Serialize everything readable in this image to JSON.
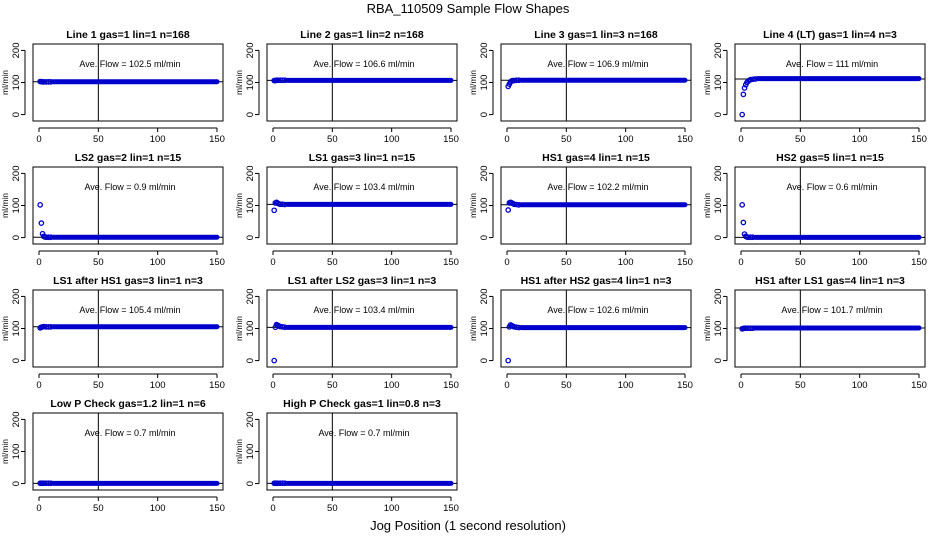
{
  "figure": {
    "title": "RBA_110509  Sample Flow Shapes",
    "xlabel": "Jog Position (1 second resolution)"
  },
  "chart_data": [
    {
      "type": "scatter",
      "title": "Line 1 gas=1 lin=1 n=168",
      "annotation": "Ave. Flow =  102.5  ml/min",
      "ylabel": "ml/min",
      "xlim": [
        0,
        150
      ],
      "ylim": [
        -20,
        220
      ],
      "xticks": [
        0,
        50,
        100,
        150
      ],
      "yticks": [
        0,
        100,
        200
      ],
      "vline": 50,
      "hline": 102.5,
      "points": [
        [
          1,
          103
        ],
        [
          2,
          103
        ],
        [
          3,
          102
        ],
        [
          4,
          102
        ],
        [
          6,
          102
        ],
        [
          8,
          102
        ],
        [
          10,
          102
        ]
      ],
      "steady": {
        "from": 12,
        "to": 150,
        "value": 102.5
      }
    },
    {
      "type": "scatter",
      "title": "Line 2 gas=1 lin=2 n=168",
      "annotation": "Ave. Flow =  106.6  ml/min",
      "ylabel": "ml/min",
      "xlim": [
        0,
        150
      ],
      "ylim": [
        -20,
        220
      ],
      "xticks": [
        0,
        50,
        100,
        150
      ],
      "yticks": [
        0,
        100,
        200
      ],
      "vline": 50,
      "hline": 106.6,
      "points": [
        [
          1,
          106
        ],
        [
          2,
          106
        ],
        [
          3,
          107
        ],
        [
          4,
          107
        ],
        [
          6,
          107
        ],
        [
          8,
          107
        ],
        [
          10,
          107
        ]
      ],
      "steady": {
        "from": 12,
        "to": 150,
        "value": 106.6
      }
    },
    {
      "type": "scatter",
      "title": "Line 3 gas=1 lin=3 n=168",
      "annotation": "Ave. Flow =  106.9  ml/min",
      "ylabel": "ml/min",
      "xlim": [
        0,
        150
      ],
      "ylim": [
        -20,
        220
      ],
      "xticks": [
        0,
        50,
        100,
        150
      ],
      "yticks": [
        0,
        100,
        200
      ],
      "vline": 50,
      "hline": 106.9,
      "points": [
        [
          1,
          88
        ],
        [
          2,
          95
        ],
        [
          3,
          102
        ],
        [
          4,
          105
        ],
        [
          5,
          106
        ],
        [
          6,
          106
        ],
        [
          8,
          107
        ],
        [
          10,
          107
        ]
      ],
      "steady": {
        "from": 12,
        "to": 150,
        "value": 106.9
      }
    },
    {
      "type": "scatter",
      "title": "Line 4 (LT) gas=1 lin=4 n=3",
      "annotation": "Ave. Flow =  111  ml/min",
      "ylabel": "ml/min",
      "xlim": [
        0,
        150
      ],
      "ylim": [
        -20,
        220
      ],
      "xticks": [
        0,
        50,
        100,
        150
      ],
      "yticks": [
        0,
        100,
        200
      ],
      "vline": 50,
      "hline": 111,
      "points": [
        [
          1,
          0
        ],
        [
          2,
          63
        ],
        [
          3,
          83
        ],
        [
          4,
          93
        ],
        [
          5,
          100
        ],
        [
          6,
          104
        ],
        [
          7,
          107
        ],
        [
          8,
          109
        ],
        [
          10,
          110
        ],
        [
          12,
          111
        ]
      ],
      "steady": {
        "from": 14,
        "to": 150,
        "value": 112
      }
    },
    {
      "type": "scatter",
      "title": "LS2 gas=2 lin=1 n=15",
      "annotation": "Ave. Flow =  0.9  ml/min",
      "ylabel": "ml/min",
      "xlim": [
        0,
        150
      ],
      "ylim": [
        -20,
        220
      ],
      "xticks": [
        0,
        50,
        100,
        150
      ],
      "yticks": [
        0,
        100,
        200
      ],
      "vline": 50,
      "hline": 0.9,
      "points": [
        [
          1,
          102
        ],
        [
          2,
          45
        ],
        [
          3,
          12
        ],
        [
          4,
          4
        ],
        [
          5,
          2
        ],
        [
          6,
          1
        ],
        [
          8,
          1
        ],
        [
          10,
          1
        ]
      ],
      "steady": {
        "from": 12,
        "to": 150,
        "value": 0.9
      }
    },
    {
      "type": "scatter",
      "title": "LS1 gas=3 lin=1 n=15",
      "annotation": "Ave. Flow =  103.4  ml/min",
      "ylabel": "ml/min",
      "xlim": [
        0,
        150
      ],
      "ylim": [
        -20,
        220
      ],
      "xticks": [
        0,
        50,
        100,
        150
      ],
      "yticks": [
        0,
        100,
        200
      ],
      "vline": 50,
      "hline": 103.4,
      "points": [
        [
          1,
          85
        ],
        [
          2,
          108
        ],
        [
          3,
          110
        ],
        [
          4,
          107
        ],
        [
          5,
          105
        ],
        [
          6,
          104
        ],
        [
          8,
          104
        ],
        [
          10,
          103
        ]
      ],
      "steady": {
        "from": 12,
        "to": 150,
        "value": 103.4
      }
    },
    {
      "type": "scatter",
      "title": "HS1 gas=4 lin=1 n=15",
      "annotation": "Ave. Flow =  102.2  ml/min",
      "ylabel": "ml/min",
      "xlim": [
        0,
        150
      ],
      "ylim": [
        -20,
        220
      ],
      "xticks": [
        0,
        50,
        100,
        150
      ],
      "yticks": [
        0,
        100,
        200
      ],
      "vline": 50,
      "hline": 102.2,
      "points": [
        [
          1,
          86
        ],
        [
          2,
          108
        ],
        [
          3,
          110
        ],
        [
          4,
          108
        ],
        [
          5,
          106
        ],
        [
          6,
          104
        ],
        [
          8,
          103
        ],
        [
          10,
          102
        ]
      ],
      "steady": {
        "from": 12,
        "to": 150,
        "value": 102.2
      }
    },
    {
      "type": "scatter",
      "title": "HS2 gas=5 lin=1 n=15",
      "annotation": "Ave. Flow =  0.6  ml/min",
      "ylabel": "ml/min",
      "xlim": [
        0,
        150
      ],
      "ylim": [
        -20,
        220
      ],
      "xticks": [
        0,
        50,
        100,
        150
      ],
      "yticks": [
        0,
        100,
        200
      ],
      "vline": 50,
      "hline": 0.6,
      "points": [
        [
          1,
          102
        ],
        [
          2,
          47
        ],
        [
          3,
          11
        ],
        [
          4,
          4
        ],
        [
          5,
          2
        ],
        [
          6,
          1
        ],
        [
          8,
          1
        ],
        [
          10,
          1
        ]
      ],
      "steady": {
        "from": 12,
        "to": 150,
        "value": 0.6
      }
    },
    {
      "type": "scatter",
      "title": "LS1 after HS1 gas=3 lin=1 n=3",
      "annotation": "Ave. Flow =  105.4  ml/min",
      "ylabel": "ml/min",
      "xlim": [
        0,
        150
      ],
      "ylim": [
        -20,
        220
      ],
      "xticks": [
        0,
        50,
        100,
        150
      ],
      "yticks": [
        0,
        100,
        200
      ],
      "vline": 50,
      "hline": 105.4,
      "points": [
        [
          1,
          102
        ],
        [
          2,
          104
        ],
        [
          3,
          105
        ],
        [
          4,
          106
        ],
        [
          6,
          105
        ],
        [
          8,
          105
        ],
        [
          10,
          105
        ]
      ],
      "steady": {
        "from": 12,
        "to": 150,
        "value": 105.4
      }
    },
    {
      "type": "scatter",
      "title": "LS1 after LS2 gas=3 lin=1 n=3",
      "annotation": "Ave. Flow =  103.4  ml/min",
      "ylabel": "ml/min",
      "xlim": [
        0,
        150
      ],
      "ylim": [
        -20,
        220
      ],
      "xticks": [
        0,
        50,
        100,
        150
      ],
      "yticks": [
        0,
        100,
        200
      ],
      "vline": 50,
      "hline": 103.4,
      "points": [
        [
          1,
          0
        ],
        [
          2,
          104
        ],
        [
          3,
          112
        ],
        [
          4,
          110
        ],
        [
          5,
          108
        ],
        [
          6,
          106
        ],
        [
          8,
          105
        ],
        [
          10,
          104
        ]
      ],
      "steady": {
        "from": 12,
        "to": 150,
        "value": 103.4
      }
    },
    {
      "type": "scatter",
      "title": "HS1 after HS2 gas=4 lin=1 n=3",
      "annotation": "Ave. Flow =  102.6  ml/min",
      "ylabel": "ml/min",
      "xlim": [
        0,
        150
      ],
      "ylim": [
        -20,
        220
      ],
      "xticks": [
        0,
        50,
        100,
        150
      ],
      "yticks": [
        0,
        100,
        200
      ],
      "vline": 50,
      "hline": 102.6,
      "points": [
        [
          1,
          0
        ],
        [
          2,
          105
        ],
        [
          3,
          111
        ],
        [
          4,
          109
        ],
        [
          5,
          107
        ],
        [
          6,
          105
        ],
        [
          8,
          104
        ],
        [
          10,
          103
        ]
      ],
      "steady": {
        "from": 12,
        "to": 150,
        "value": 102.6
      }
    },
    {
      "type": "scatter",
      "title": "HS1 after LS1 gas=4 lin=1 n=3",
      "annotation": "Ave. Flow =  101.7  ml/min",
      "ylabel": "ml/min",
      "xlim": [
        0,
        150
      ],
      "ylim": [
        -20,
        220
      ],
      "xticks": [
        0,
        50,
        100,
        150
      ],
      "yticks": [
        0,
        100,
        200
      ],
      "vline": 50,
      "hline": 101.7,
      "points": [
        [
          1,
          99
        ],
        [
          2,
          100
        ],
        [
          3,
          101
        ],
        [
          4,
          101
        ],
        [
          6,
          101
        ],
        [
          8,
          101
        ],
        [
          10,
          101
        ]
      ],
      "steady": {
        "from": 12,
        "to": 150,
        "value": 101.7
      }
    },
    {
      "type": "scatter",
      "title": "Low P Check gas=1.2 lin=1 n=6",
      "annotation": "Ave. Flow =  0.7  ml/min",
      "ylabel": "ml/min",
      "xlim": [
        0,
        150
      ],
      "ylim": [
        -20,
        220
      ],
      "xticks": [
        0,
        50,
        100,
        150
      ],
      "yticks": [
        0,
        100,
        200
      ],
      "vline": 50,
      "hline": 0.7,
      "points": [
        [
          1,
          1
        ],
        [
          2,
          1
        ],
        [
          3,
          1
        ],
        [
          4,
          1
        ],
        [
          6,
          1
        ],
        [
          8,
          1
        ],
        [
          10,
          1
        ]
      ],
      "steady": {
        "from": 12,
        "to": 150,
        "value": 0.7
      }
    },
    {
      "type": "scatter",
      "title": "High P Check gas=1 lin=0.8 n=3",
      "annotation": "Ave. Flow =  0.7  ml/min",
      "ylabel": "ml/min",
      "xlim": [
        0,
        150
      ],
      "ylim": [
        -20,
        220
      ],
      "xticks": [
        0,
        50,
        100,
        150
      ],
      "yticks": [
        0,
        100,
        200
      ],
      "vline": 50,
      "hline": 0.7,
      "points": [
        [
          1,
          1
        ],
        [
          2,
          1
        ],
        [
          3,
          1
        ],
        [
          4,
          1
        ],
        [
          6,
          1
        ],
        [
          8,
          1
        ],
        [
          10,
          1
        ]
      ],
      "steady": {
        "from": 12,
        "to": 150,
        "value": 0.7
      }
    }
  ],
  "colors": {
    "points": "#0000cc",
    "axis": "#000000",
    "background": "#ffffff"
  }
}
